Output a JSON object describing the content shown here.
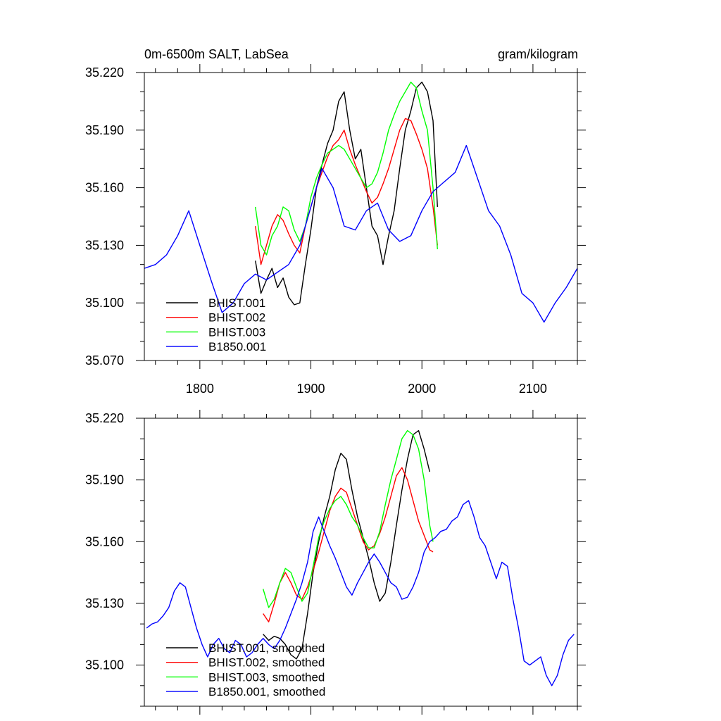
{
  "figure": {
    "title_left": "0m-6500m SALT, LabSea",
    "title_right": "gram/kilogram"
  },
  "chart_data": [
    {
      "type": "line",
      "title": "0m-6500m SALT, LabSea",
      "units": "gram/kilogram",
      "xlim": [
        1750,
        2140
      ],
      "ylim": [
        35.07,
        35.22
      ],
      "xticks": [
        1800,
        1900,
        2000,
        2100
      ],
      "xtick_labels": [
        "1800",
        "1900",
        "2000",
        "2100"
      ],
      "yticks": [
        35.07,
        35.1,
        35.13,
        35.16,
        35.19,
        35.22
      ],
      "ytick_labels": [
        "35.070",
        "35.100",
        "35.130",
        "35.160",
        "35.190",
        "35.220"
      ],
      "legend_position": "bottom-left",
      "series": [
        {
          "name": "BHIST.001",
          "color": "#000000",
          "x": [
            1850,
            1855,
            1860,
            1865,
            1870,
            1875,
            1880,
            1885,
            1890,
            1895,
            1900,
            1905,
            1910,
            1915,
            1920,
            1925,
            1930,
            1935,
            1940,
            1945,
            1950,
            1955,
            1960,
            1965,
            1970,
            1975,
            1980,
            1985,
            1990,
            1995,
            2000,
            2005,
            2010,
            2014
          ],
          "y": [
            35.122,
            35.105,
            35.112,
            35.118,
            35.108,
            35.113,
            35.103,
            35.099,
            35.1,
            35.12,
            35.138,
            35.16,
            35.172,
            35.183,
            35.19,
            35.205,
            35.21,
            35.19,
            35.175,
            35.18,
            35.16,
            35.14,
            35.135,
            35.12,
            35.135,
            35.148,
            35.17,
            35.19,
            35.2,
            35.212,
            35.215,
            35.21,
            35.195,
            35.15
          ]
        },
        {
          "name": "BHIST.002",
          "color": "#ff0000",
          "x": [
            1850,
            1855,
            1860,
            1865,
            1870,
            1875,
            1880,
            1885,
            1890,
            1895,
            1900,
            1905,
            1910,
            1915,
            1920,
            1925,
            1930,
            1935,
            1940,
            1945,
            1950,
            1955,
            1960,
            1965,
            1970,
            1975,
            1980,
            1985,
            1990,
            1995,
            2000,
            2005,
            2010,
            2014
          ],
          "y": [
            35.14,
            35.12,
            35.13,
            35.14,
            35.146,
            35.143,
            35.136,
            35.13,
            35.126,
            35.14,
            35.15,
            35.16,
            35.168,
            35.176,
            35.182,
            35.185,
            35.19,
            35.18,
            35.172,
            35.165,
            35.158,
            35.152,
            35.155,
            35.162,
            35.17,
            35.18,
            35.19,
            35.196,
            35.195,
            35.188,
            35.18,
            35.17,
            35.15,
            35.13
          ]
        },
        {
          "name": "BHIST.003",
          "color": "#00ff00",
          "x": [
            1850,
            1855,
            1860,
            1865,
            1870,
            1875,
            1880,
            1885,
            1890,
            1895,
            1900,
            1905,
            1910,
            1915,
            1920,
            1925,
            1930,
            1935,
            1940,
            1945,
            1950,
            1955,
            1960,
            1965,
            1970,
            1975,
            1980,
            1985,
            1990,
            1995,
            2000,
            2005,
            2010,
            2014
          ],
          "y": [
            35.15,
            35.13,
            35.125,
            35.135,
            35.14,
            35.15,
            35.148,
            35.138,
            35.132,
            35.14,
            35.155,
            35.165,
            35.172,
            35.178,
            35.18,
            35.182,
            35.18,
            35.175,
            35.17,
            35.165,
            35.16,
            35.162,
            35.168,
            35.178,
            35.19,
            35.198,
            35.205,
            35.21,
            35.215,
            35.212,
            35.2,
            35.19,
            35.16,
            35.128
          ]
        },
        {
          "name": "B1850.001",
          "color": "#0000ff",
          "x": [
            1750,
            1760,
            1770,
            1780,
            1790,
            1800,
            1810,
            1820,
            1830,
            1840,
            1850,
            1860,
            1870,
            1880,
            1890,
            1900,
            1910,
            1920,
            1930,
            1940,
            1950,
            1960,
            1970,
            1980,
            1990,
            2000,
            2010,
            2020,
            2030,
            2040,
            2050,
            2060,
            2070,
            2080,
            2090,
            2100,
            2110,
            2120,
            2130,
            2140
          ],
          "y": [
            35.118,
            35.12,
            35.125,
            35.135,
            35.148,
            35.13,
            35.112,
            35.095,
            35.1,
            35.11,
            35.115,
            35.112,
            35.116,
            35.12,
            35.13,
            35.15,
            35.17,
            35.16,
            35.14,
            35.138,
            35.148,
            35.152,
            35.138,
            35.132,
            35.135,
            35.148,
            35.158,
            35.163,
            35.168,
            35.182,
            35.165,
            35.148,
            35.14,
            35.125,
            35.105,
            35.1,
            35.09,
            35.1,
            35.108,
            35.118
          ]
        }
      ]
    },
    {
      "type": "line",
      "xlim": [
        1750,
        2140
      ],
      "ylim": [
        35.08,
        35.22
      ],
      "xticks": [
        1800,
        1900,
        2000,
        2100
      ],
      "yticks": [
        35.1,
        35.13,
        35.16,
        35.19,
        35.22
      ],
      "ytick_labels": [
        "35.100",
        "35.130",
        "35.160",
        "35.190",
        "35.220"
      ],
      "legend_position": "bottom-left",
      "series": [
        {
          "name": "BHIST.001, smoothed",
          "color": "#000000",
          "x": [
            1857,
            1862,
            1867,
            1872,
            1877,
            1882,
            1887,
            1892,
            1897,
            1902,
            1907,
            1912,
            1917,
            1922,
            1927,
            1932,
            1937,
            1942,
            1947,
            1952,
            1957,
            1962,
            1967,
            1972,
            1977,
            1982,
            1987,
            1992,
            1997,
            2002,
            2007
          ],
          "y": [
            35.115,
            35.112,
            35.114,
            35.113,
            35.11,
            35.105,
            35.103,
            35.108,
            35.125,
            35.145,
            35.16,
            35.172,
            35.182,
            35.195,
            35.203,
            35.2,
            35.185,
            35.172,
            35.162,
            35.152,
            35.14,
            35.131,
            35.135,
            35.15,
            35.168,
            35.185,
            35.2,
            35.212,
            35.214,
            35.205,
            35.194
          ]
        },
        {
          "name": "BHIST.002, smoothed",
          "color": "#ff0000",
          "x": [
            1857,
            1862,
            1867,
            1872,
            1877,
            1882,
            1887,
            1892,
            1897,
            1902,
            1907,
            1912,
            1917,
            1922,
            1927,
            1932,
            1937,
            1942,
            1947,
            1952,
            1957,
            1962,
            1967,
            1972,
            1977,
            1982,
            1987,
            1992,
            1997,
            2002,
            2007,
            2010
          ],
          "y": [
            35.125,
            35.121,
            35.13,
            35.14,
            35.145,
            35.14,
            35.134,
            35.132,
            35.138,
            35.146,
            35.155,
            35.165,
            35.175,
            35.182,
            35.186,
            35.184,
            35.176,
            35.168,
            35.16,
            35.156,
            35.158,
            35.164,
            35.172,
            35.182,
            35.192,
            35.196,
            35.19,
            35.18,
            35.17,
            35.163,
            35.156,
            35.155
          ]
        },
        {
          "name": "BHIST.003, smoothed",
          "color": "#00ff00",
          "x": [
            1857,
            1862,
            1867,
            1872,
            1877,
            1882,
            1887,
            1892,
            1897,
            1902,
            1907,
            1912,
            1917,
            1922,
            1927,
            1932,
            1937,
            1942,
            1947,
            1952,
            1957,
            1962,
            1967,
            1972,
            1977,
            1982,
            1987,
            1992,
            1997,
            2002,
            2007,
            2010
          ],
          "y": [
            35.137,
            35.128,
            35.132,
            35.14,
            35.147,
            35.145,
            35.138,
            35.131,
            35.135,
            35.148,
            35.162,
            35.17,
            35.176,
            35.18,
            35.182,
            35.178,
            35.172,
            35.168,
            35.162,
            35.157,
            35.157,
            35.165,
            35.178,
            35.19,
            35.2,
            35.21,
            35.214,
            35.212,
            35.205,
            35.19,
            35.168,
            35.16
          ]
        },
        {
          "name": "B1850.001, smoothed",
          "color": "#0000ff",
          "x": [
            1752,
            1757,
            1762,
            1767,
            1772,
            1777,
            1782,
            1787,
            1792,
            1797,
            1802,
            1807,
            1812,
            1817,
            1822,
            1827,
            1832,
            1837,
            1842,
            1847,
            1852,
            1857,
            1862,
            1867,
            1872,
            1877,
            1882,
            1887,
            1892,
            1897,
            1902,
            1907,
            1912,
            1917,
            1922,
            1927,
            1932,
            1937,
            1942,
            1947,
            1952,
            1957,
            1962,
            1967,
            1972,
            1977,
            1982,
            1987,
            1992,
            1997,
            2002,
            2007,
            2012,
            2017,
            2022,
            2027,
            2032,
            2037,
            2042,
            2047,
            2052,
            2057,
            2062,
            2067,
            2072,
            2077,
            2082,
            2087,
            2092,
            2097,
            2102,
            2107,
            2112,
            2117,
            2122,
            2127,
            2132,
            2137
          ],
          "y": [
            35.118,
            35.12,
            35.121,
            35.124,
            35.128,
            35.136,
            35.14,
            35.138,
            35.128,
            35.118,
            35.11,
            35.104,
            35.11,
            35.113,
            35.108,
            35.106,
            35.112,
            35.11,
            35.104,
            35.106,
            35.11,
            35.113,
            35.11,
            35.108,
            35.112,
            35.118,
            35.125,
            35.132,
            35.14,
            35.15,
            35.165,
            35.172,
            35.165,
            35.158,
            35.152,
            35.145,
            35.138,
            35.134,
            35.14,
            35.145,
            35.15,
            35.154,
            35.15,
            35.145,
            35.14,
            35.138,
            35.132,
            35.133,
            35.138,
            35.145,
            35.155,
            35.16,
            35.162,
            35.165,
            35.166,
            35.17,
            35.172,
            35.178,
            35.18,
            35.172,
            35.162,
            35.158,
            35.15,
            35.142,
            35.15,
            35.148,
            35.132,
            35.118,
            35.102,
            35.1,
            35.102,
            35.104,
            35.095,
            35.09,
            35.095,
            35.105,
            35.112,
            35.115
          ]
        }
      ]
    }
  ]
}
